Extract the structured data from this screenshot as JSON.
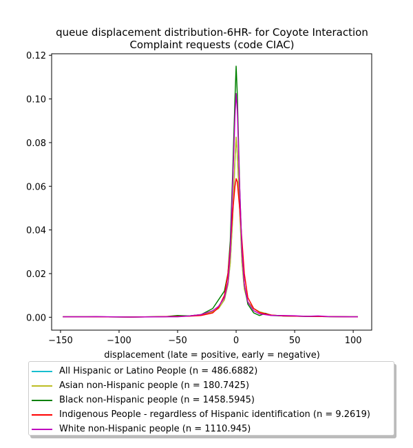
{
  "chart_data": {
    "type": "line",
    "title_lines": [
      "queue displacement distribution-6HR-  for Coyote Interaction",
      "Complaint  requests (code CIAC)"
    ],
    "xlabel": "displacement (late = positive, early = negative)",
    "ylabel": "",
    "xlim": [
      -157.6,
      115.8
    ],
    "ylim": [
      -0.0059,
      0.1207
    ],
    "x_ticks": [
      -150,
      -100,
      -50,
      0,
      50,
      100
    ],
    "x_tick_labels": [
      "−150",
      "−100",
      "−50",
      "0",
      "50",
      "100"
    ],
    "y_ticks": [
      0.0,
      0.02,
      0.04,
      0.06,
      0.08,
      0.1,
      0.12
    ],
    "y_tick_labels": [
      "0.00",
      "0.02",
      "0.04",
      "0.06",
      "0.08",
      "0.10",
      "0.12"
    ],
    "grid": false,
    "legend_position": "below",
    "series": [
      {
        "name": "All Hispanic or Latino People (n = 486.6882)",
        "color": "#17becf",
        "x": [
          -148,
          -120,
          -90,
          -60,
          -40,
          -30,
          -20,
          -15,
          -10,
          -7,
          -5,
          -3,
          -1,
          0,
          1,
          3,
          5,
          7,
          10,
          15,
          20,
          30,
          40,
          60,
          80,
          104
        ],
        "y": [
          0.0002,
          0.0002,
          0.0001,
          0.0003,
          0.0006,
          0.0012,
          0.0025,
          0.004,
          0.008,
          0.015,
          0.025,
          0.045,
          0.072,
          0.0825,
          0.075,
          0.05,
          0.025,
          0.013,
          0.007,
          0.004,
          0.0025,
          0.001,
          0.0006,
          0.0004,
          0.0003,
          0.0002
        ]
      },
      {
        "name": "Asian non-Hispanic people (n = 180.7425)",
        "color": "#bcbd22",
        "x": [
          -148,
          -120,
          -90,
          -60,
          -40,
          -30,
          -20,
          -15,
          -10,
          -7,
          -5,
          -3,
          -1,
          0,
          1,
          3,
          5,
          7,
          10,
          15,
          20,
          30,
          40,
          60,
          80,
          104
        ],
        "y": [
          0.0002,
          0.0002,
          0.0001,
          0.0003,
          0.0006,
          0.0012,
          0.0025,
          0.004,
          0.008,
          0.015,
          0.025,
          0.045,
          0.072,
          0.0825,
          0.075,
          0.05,
          0.025,
          0.013,
          0.007,
          0.004,
          0.0025,
          0.001,
          0.0006,
          0.0004,
          0.0003,
          0.0002
        ]
      },
      {
        "name": "Black non-Hispanic people (n = 1458.5945)",
        "color": "#008000",
        "x": [
          -148,
          -120,
          -90,
          -60,
          -50,
          -40,
          -30,
          -20,
          -15,
          -10,
          -7,
          -5,
          -3,
          -1,
          0,
          1,
          3,
          5,
          7,
          10,
          15,
          20,
          25,
          30,
          40,
          60,
          80,
          104
        ],
        "y": [
          0.0002,
          0.0002,
          0.0001,
          0.0003,
          0.0008,
          0.0006,
          0.0012,
          0.004,
          0.008,
          0.012,
          0.02,
          0.035,
          0.065,
          0.1,
          0.115,
          0.102,
          0.06,
          0.03,
          0.015,
          0.006,
          0.002,
          0.0008,
          0.0018,
          0.0008,
          0.0006,
          0.0004,
          0.0003,
          0.0002
        ]
      },
      {
        "name": "Indigenous People - regardless of Hispanic identification (n = 9.2619)",
        "color": "#ff0000",
        "x": [
          -148,
          -120,
          -90,
          -60,
          -40,
          -30,
          -20,
          -15,
          -10,
          -7,
          -5,
          -3,
          -1,
          0,
          1,
          3,
          5,
          7,
          10,
          15,
          20,
          30,
          40,
          60,
          80,
          104
        ],
        "y": [
          0.0002,
          0.0002,
          0.0001,
          0.0003,
          0.0005,
          0.0008,
          0.002,
          0.0045,
          0.01,
          0.02,
          0.032,
          0.048,
          0.06,
          0.0635,
          0.062,
          0.05,
          0.035,
          0.02,
          0.009,
          0.004,
          0.0022,
          0.001,
          0.0006,
          0.0004,
          0.0003,
          0.0002
        ]
      },
      {
        "name": "White non-Hispanic people (n = 1110.945)",
        "color": "#bf00bf",
        "x": [
          -148,
          -130,
          -120,
          -90,
          -60,
          -50,
          -40,
          -30,
          -20,
          -15,
          -10,
          -7,
          -5,
          -3,
          -1,
          0,
          1,
          3,
          5,
          7,
          10,
          15,
          20,
          30,
          40,
          50,
          60,
          70,
          80,
          104
        ],
        "y": [
          0.0002,
          0.0002,
          0.0003,
          0.0001,
          0.0002,
          0.0002,
          0.0006,
          0.0012,
          0.003,
          0.005,
          0.009,
          0.016,
          0.03,
          0.06,
          0.092,
          0.1025,
          0.095,
          0.06,
          0.03,
          0.015,
          0.007,
          0.003,
          0.0016,
          0.0008,
          0.0008,
          0.0007,
          0.0004,
          0.0006,
          0.0003,
          0.0002
        ]
      }
    ]
  }
}
